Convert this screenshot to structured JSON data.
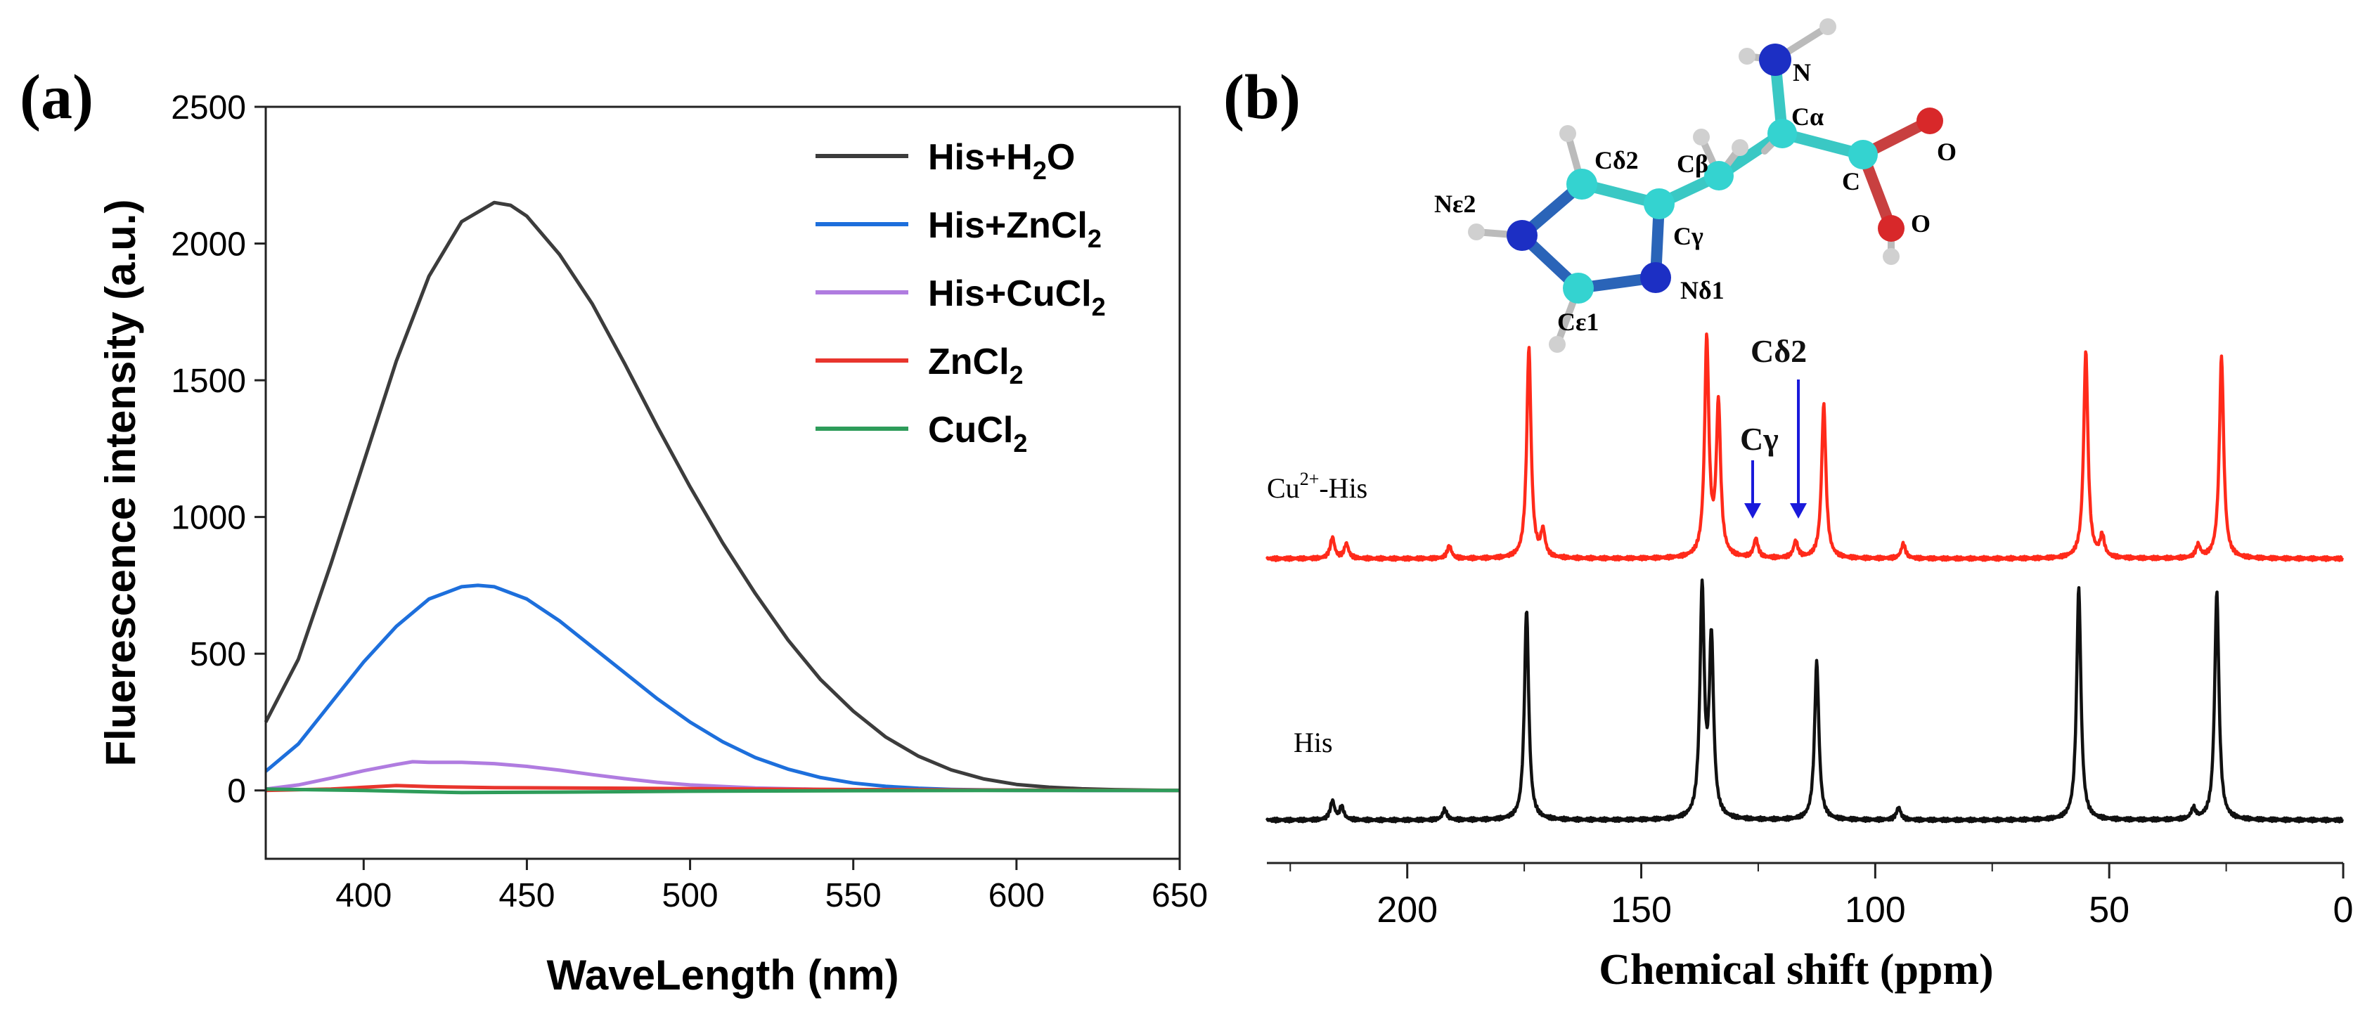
{
  "panel_a": {
    "label": "(a)",
    "chart_data": {
      "type": "line",
      "title": "",
      "xlabel": "WaveLength (nm)",
      "ylabel": "Fluerescence intensity (a.u.)",
      "xlim": [
        370,
        650
      ],
      "ylim": [
        -250,
        2500
      ],
      "xticks": [
        400,
        450,
        500,
        550,
        600,
        650
      ],
      "yticks": [
        0,
        500,
        1000,
        1500,
        2000,
        2500
      ],
      "legend_position": "top-right",
      "series": [
        {
          "name": "His+H2O",
          "legend_text": "His+H",
          "legend_sub": "2",
          "legend_tail": "O",
          "color": "#3c3c3c",
          "x": [
            370,
            380,
            390,
            400,
            410,
            420,
            430,
            440,
            445,
            450,
            460,
            470,
            480,
            490,
            500,
            510,
            520,
            530,
            540,
            550,
            560,
            570,
            580,
            590,
            600,
            610,
            620,
            630,
            640,
            650
          ],
          "y": [
            250,
            480,
            830,
            1200,
            1570,
            1880,
            2080,
            2150,
            2140,
            2100,
            1960,
            1780,
            1560,
            1330,
            1110,
            905,
            720,
            550,
            405,
            290,
            195,
            125,
            75,
            42,
            22,
            12,
            6,
            3,
            1,
            0
          ]
        },
        {
          "name": "His+ZnCl2",
          "legend_text": "His+ZnCl",
          "legend_sub": "2",
          "legend_tail": "",
          "color": "#1d6fdc",
          "x": [
            370,
            380,
            390,
            400,
            410,
            420,
            430,
            435,
            440,
            450,
            460,
            470,
            480,
            490,
            500,
            510,
            520,
            530,
            540,
            550,
            560,
            570,
            580,
            590,
            600,
            620,
            650
          ],
          "y": [
            70,
            170,
            320,
            470,
            600,
            700,
            745,
            750,
            745,
            700,
            620,
            525,
            430,
            335,
            250,
            178,
            120,
            78,
            47,
            27,
            15,
            8,
            4,
            2,
            1,
            0,
            0
          ]
        },
        {
          "name": "His+CuCl2",
          "legend_text": "His+CuCl",
          "legend_sub": "2",
          "legend_tail": "",
          "color": "#b07ce0",
          "x": [
            370,
            380,
            390,
            400,
            410,
            415,
            420,
            430,
            440,
            450,
            460,
            470,
            480,
            490,
            500,
            520,
            540,
            560,
            580,
            600,
            650
          ],
          "y": [
            5,
            20,
            45,
            72,
            95,
            105,
            103,
            103,
            98,
            88,
            74,
            58,
            43,
            30,
            20,
            9,
            4,
            2,
            1,
            0,
            0
          ]
        },
        {
          "name": "ZnCl2",
          "legend_text": "ZnCl",
          "legend_sub": "2",
          "legend_tail": "",
          "color": "#e8352d",
          "x": [
            370,
            390,
            410,
            420,
            440,
            480,
            520,
            560,
            600,
            650
          ],
          "y": [
            0,
            5,
            18,
            14,
            10,
            8,
            5,
            3,
            1,
            0
          ]
        },
        {
          "name": "CuCl2",
          "legend_text": "CuCl",
          "legend_sub": "2",
          "legend_tail": "",
          "color": "#2e9c5a",
          "x": [
            370,
            400,
            430,
            460,
            500,
            550,
            600,
            650
          ],
          "y": [
            5,
            0,
            -8,
            -6,
            -3,
            -1,
            0,
            0
          ]
        }
      ]
    }
  },
  "panel_b": {
    "label": "(b)",
    "chart_data": {
      "type": "line",
      "title": "",
      "xlabel": "Chemical shift (ppm)",
      "ylabel": "",
      "xlim": [
        230,
        0
      ],
      "xticks": [
        200,
        150,
        100,
        50,
        0
      ],
      "series": [
        {
          "name": "Cu2+-His",
          "label_main": "Cu",
          "label_sup": "2+",
          "label_tail": "-His",
          "color": "#ff2a1a",
          "peaks": [
            {
              "ppm": 216,
              "height": 0.1
            },
            {
              "ppm": 213,
              "height": 0.07
            },
            {
              "ppm": 191,
              "height": 0.06
            },
            {
              "ppm": 174,
              "height": 1.0
            },
            {
              "ppm": 171,
              "height": 0.12
            },
            {
              "ppm": 136,
              "height": 1.03
            },
            {
              "ppm": 133.5,
              "height": 0.72
            },
            {
              "ppm": 125.5,
              "height": 0.09
            },
            {
              "ppm": 117,
              "height": 0.08
            },
            {
              "ppm": 111,
              "height": 0.73
            },
            {
              "ppm": 94,
              "height": 0.07
            },
            {
              "ppm": 55,
              "height": 0.98
            },
            {
              "ppm": 51.5,
              "height": 0.1
            },
            {
              "ppm": 31,
              "height": 0.06
            },
            {
              "ppm": 26,
              "height": 0.96
            }
          ]
        },
        {
          "name": "His",
          "label_main": "His",
          "label_sup": "",
          "label_tail": "",
          "color": "#111111",
          "peaks": [
            {
              "ppm": 216,
              "height": 0.09
            },
            {
              "ppm": 214,
              "height": 0.06
            },
            {
              "ppm": 192,
              "height": 0.05
            },
            {
              "ppm": 174.5,
              "height": 1.0
            },
            {
              "ppm": 137,
              "height": 1.08
            },
            {
              "ppm": 135,
              "height": 0.84
            },
            {
              "ppm": 112.5,
              "height": 0.75
            },
            {
              "ppm": 95,
              "height": 0.06
            },
            {
              "ppm": 56.5,
              "height": 1.1
            },
            {
              "ppm": 32,
              "height": 0.05
            },
            {
              "ppm": 27,
              "height": 1.08
            }
          ]
        }
      ],
      "annotations": [
        {
          "text": "Cγ",
          "target_ppm": 125.5,
          "color": "#1a1adb"
        },
        {
          "text": "Cδ2",
          "target_ppm": 117,
          "color": "#1a1adb"
        }
      ]
    },
    "molecule": {
      "atom_labels": [
        "N",
        "Cα",
        "Cδ2",
        "Cβ",
        "C",
        "O",
        "O",
        "Nε2",
        "Cγ",
        "Nδ1",
        "Cε1"
      ],
      "colors": {
        "carbon": "#34d3d0",
        "nitrogen": "#1c2fc4",
        "oxygen": "#d8282a",
        "hydrogen": "#c8c8c8"
      }
    }
  }
}
